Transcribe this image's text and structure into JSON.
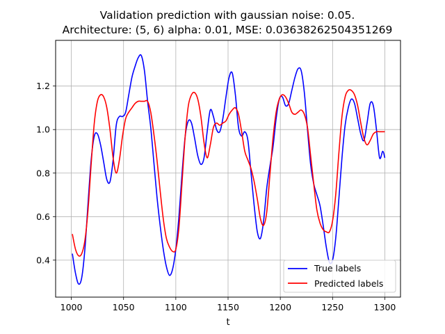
{
  "chart_data": {
    "type": "line",
    "title": "Validation prediction with gaussian noise: 0.05.",
    "subtitle": "Architecture: (5, 6) alpha: 0.01, MSE: 0.03638262504351269",
    "xlabel": "t",
    "ylabel": "",
    "xlim": [
      985,
      1315
    ],
    "ylim": [
      0.23,
      1.41
    ],
    "xticks": [
      "1000",
      "1050",
      "1100",
      "1150",
      "1200",
      "1250",
      "1300"
    ],
    "yticks": [
      "0.4",
      "0.6",
      "0.8",
      "1.0",
      "1.2"
    ],
    "grid": true,
    "legend_position": "lower-right",
    "series": [
      {
        "name": "True labels",
        "color": "#0000ff",
        "x": [
          1001,
          1004,
          1007,
          1010,
          1013,
          1016,
          1019,
          1022,
          1025,
          1028,
          1031,
          1034,
          1037,
          1040,
          1043,
          1046,
          1049,
          1052,
          1055,
          1058,
          1061,
          1064,
          1067,
          1070,
          1073,
          1076,
          1079,
          1082,
          1085,
          1088,
          1091,
          1094,
          1097,
          1100,
          1103,
          1106,
          1109,
          1112,
          1115,
          1118,
          1121,
          1124,
          1127,
          1130,
          1133,
          1136,
          1139,
          1142,
          1145,
          1148,
          1151,
          1154,
          1157,
          1160,
          1163,
          1166,
          1169,
          1172,
          1175,
          1178,
          1181,
          1184,
          1187,
          1190,
          1193,
          1196,
          1199,
          1202,
          1205,
          1208,
          1211,
          1214,
          1217,
          1220,
          1223,
          1226,
          1229,
          1232,
          1235,
          1238,
          1241,
          1244,
          1247,
          1250,
          1253,
          1256,
          1259,
          1262,
          1265,
          1268,
          1271,
          1274,
          1277,
          1280,
          1283,
          1286,
          1289,
          1292,
          1295,
          1298,
          1300
        ],
        "y": [
          0.43,
          0.34,
          0.29,
          0.32,
          0.45,
          0.66,
          0.86,
          0.97,
          0.98,
          0.93,
          0.85,
          0.77,
          0.76,
          0.86,
          1.02,
          1.06,
          1.06,
          1.08,
          1.16,
          1.24,
          1.29,
          1.33,
          1.34,
          1.27,
          1.13,
          1.01,
          0.85,
          0.69,
          0.56,
          0.45,
          0.37,
          0.33,
          0.36,
          0.45,
          0.6,
          0.8,
          0.97,
          1.04,
          1.03,
          0.96,
          0.88,
          0.84,
          0.87,
          0.99,
          1.09,
          1.06,
          1.0,
          0.99,
          1.05,
          1.15,
          1.24,
          1.26,
          1.16,
          1.01,
          0.97,
          0.99,
          0.95,
          0.8,
          0.65,
          0.53,
          0.5,
          0.58,
          0.73,
          0.83,
          0.92,
          1.05,
          1.14,
          1.15,
          1.11,
          1.12,
          1.18,
          1.24,
          1.28,
          1.27,
          1.17,
          1.0,
          0.84,
          0.75,
          0.7,
          0.65,
          0.56,
          0.46,
          0.39,
          0.4,
          0.5,
          0.68,
          0.87,
          1.02,
          1.1,
          1.14,
          1.12,
          1.05,
          0.98,
          0.95,
          1.03,
          1.12,
          1.11,
          1.0,
          0.87,
          0.9,
          0.87
        ]
      },
      {
        "name": "Predicted labels",
        "color": "#ff0000",
        "x": [
          1001,
          1004,
          1007,
          1010,
          1013,
          1016,
          1019,
          1022,
          1025,
          1028,
          1031,
          1034,
          1037,
          1040,
          1043,
          1046,
          1049,
          1052,
          1055,
          1058,
          1061,
          1064,
          1067,
          1070,
          1073,
          1076,
          1079,
          1082,
          1085,
          1088,
          1091,
          1094,
          1097,
          1100,
          1103,
          1106,
          1109,
          1112,
          1115,
          1118,
          1121,
          1124,
          1127,
          1130,
          1133,
          1136,
          1139,
          1142,
          1145,
          1148,
          1151,
          1154,
          1157,
          1160,
          1163,
          1166,
          1169,
          1172,
          1175,
          1178,
          1181,
          1184,
          1187,
          1190,
          1193,
          1196,
          1199,
          1202,
          1205,
          1208,
          1211,
          1214,
          1217,
          1220,
          1223,
          1226,
          1229,
          1232,
          1235,
          1238,
          1241,
          1244,
          1247,
          1250,
          1253,
          1256,
          1259,
          1262,
          1265,
          1268,
          1271,
          1274,
          1277,
          1280,
          1283,
          1286,
          1289,
          1292,
          1295,
          1298,
          1300
        ],
        "y": [
          0.52,
          0.45,
          0.42,
          0.43,
          0.49,
          0.63,
          0.84,
          1.03,
          1.13,
          1.16,
          1.15,
          1.1,
          1.0,
          0.87,
          0.8,
          0.86,
          0.97,
          1.05,
          1.08,
          1.1,
          1.12,
          1.13,
          1.13,
          1.13,
          1.13,
          1.08,
          0.98,
          0.86,
          0.72,
          0.59,
          0.5,
          0.46,
          0.44,
          0.45,
          0.55,
          0.76,
          0.97,
          1.11,
          1.16,
          1.17,
          1.14,
          1.06,
          0.94,
          0.87,
          0.93,
          1.01,
          1.03,
          1.02,
          1.03,
          1.04,
          1.07,
          1.09,
          1.1,
          1.07,
          0.99,
          0.9,
          0.86,
          0.82,
          0.76,
          0.68,
          0.59,
          0.56,
          0.62,
          0.79,
          0.96,
          1.08,
          1.14,
          1.16,
          1.15,
          1.12,
          1.08,
          1.07,
          1.08,
          1.09,
          1.07,
          1.01,
          0.88,
          0.75,
          0.63,
          0.57,
          0.54,
          0.53,
          0.53,
          0.58,
          0.7,
          0.89,
          1.06,
          1.15,
          1.18,
          1.18,
          1.16,
          1.11,
          1.03,
          0.96,
          0.93,
          0.95,
          0.98,
          0.99,
          0.99,
          0.99,
          0.99
        ]
      }
    ]
  }
}
